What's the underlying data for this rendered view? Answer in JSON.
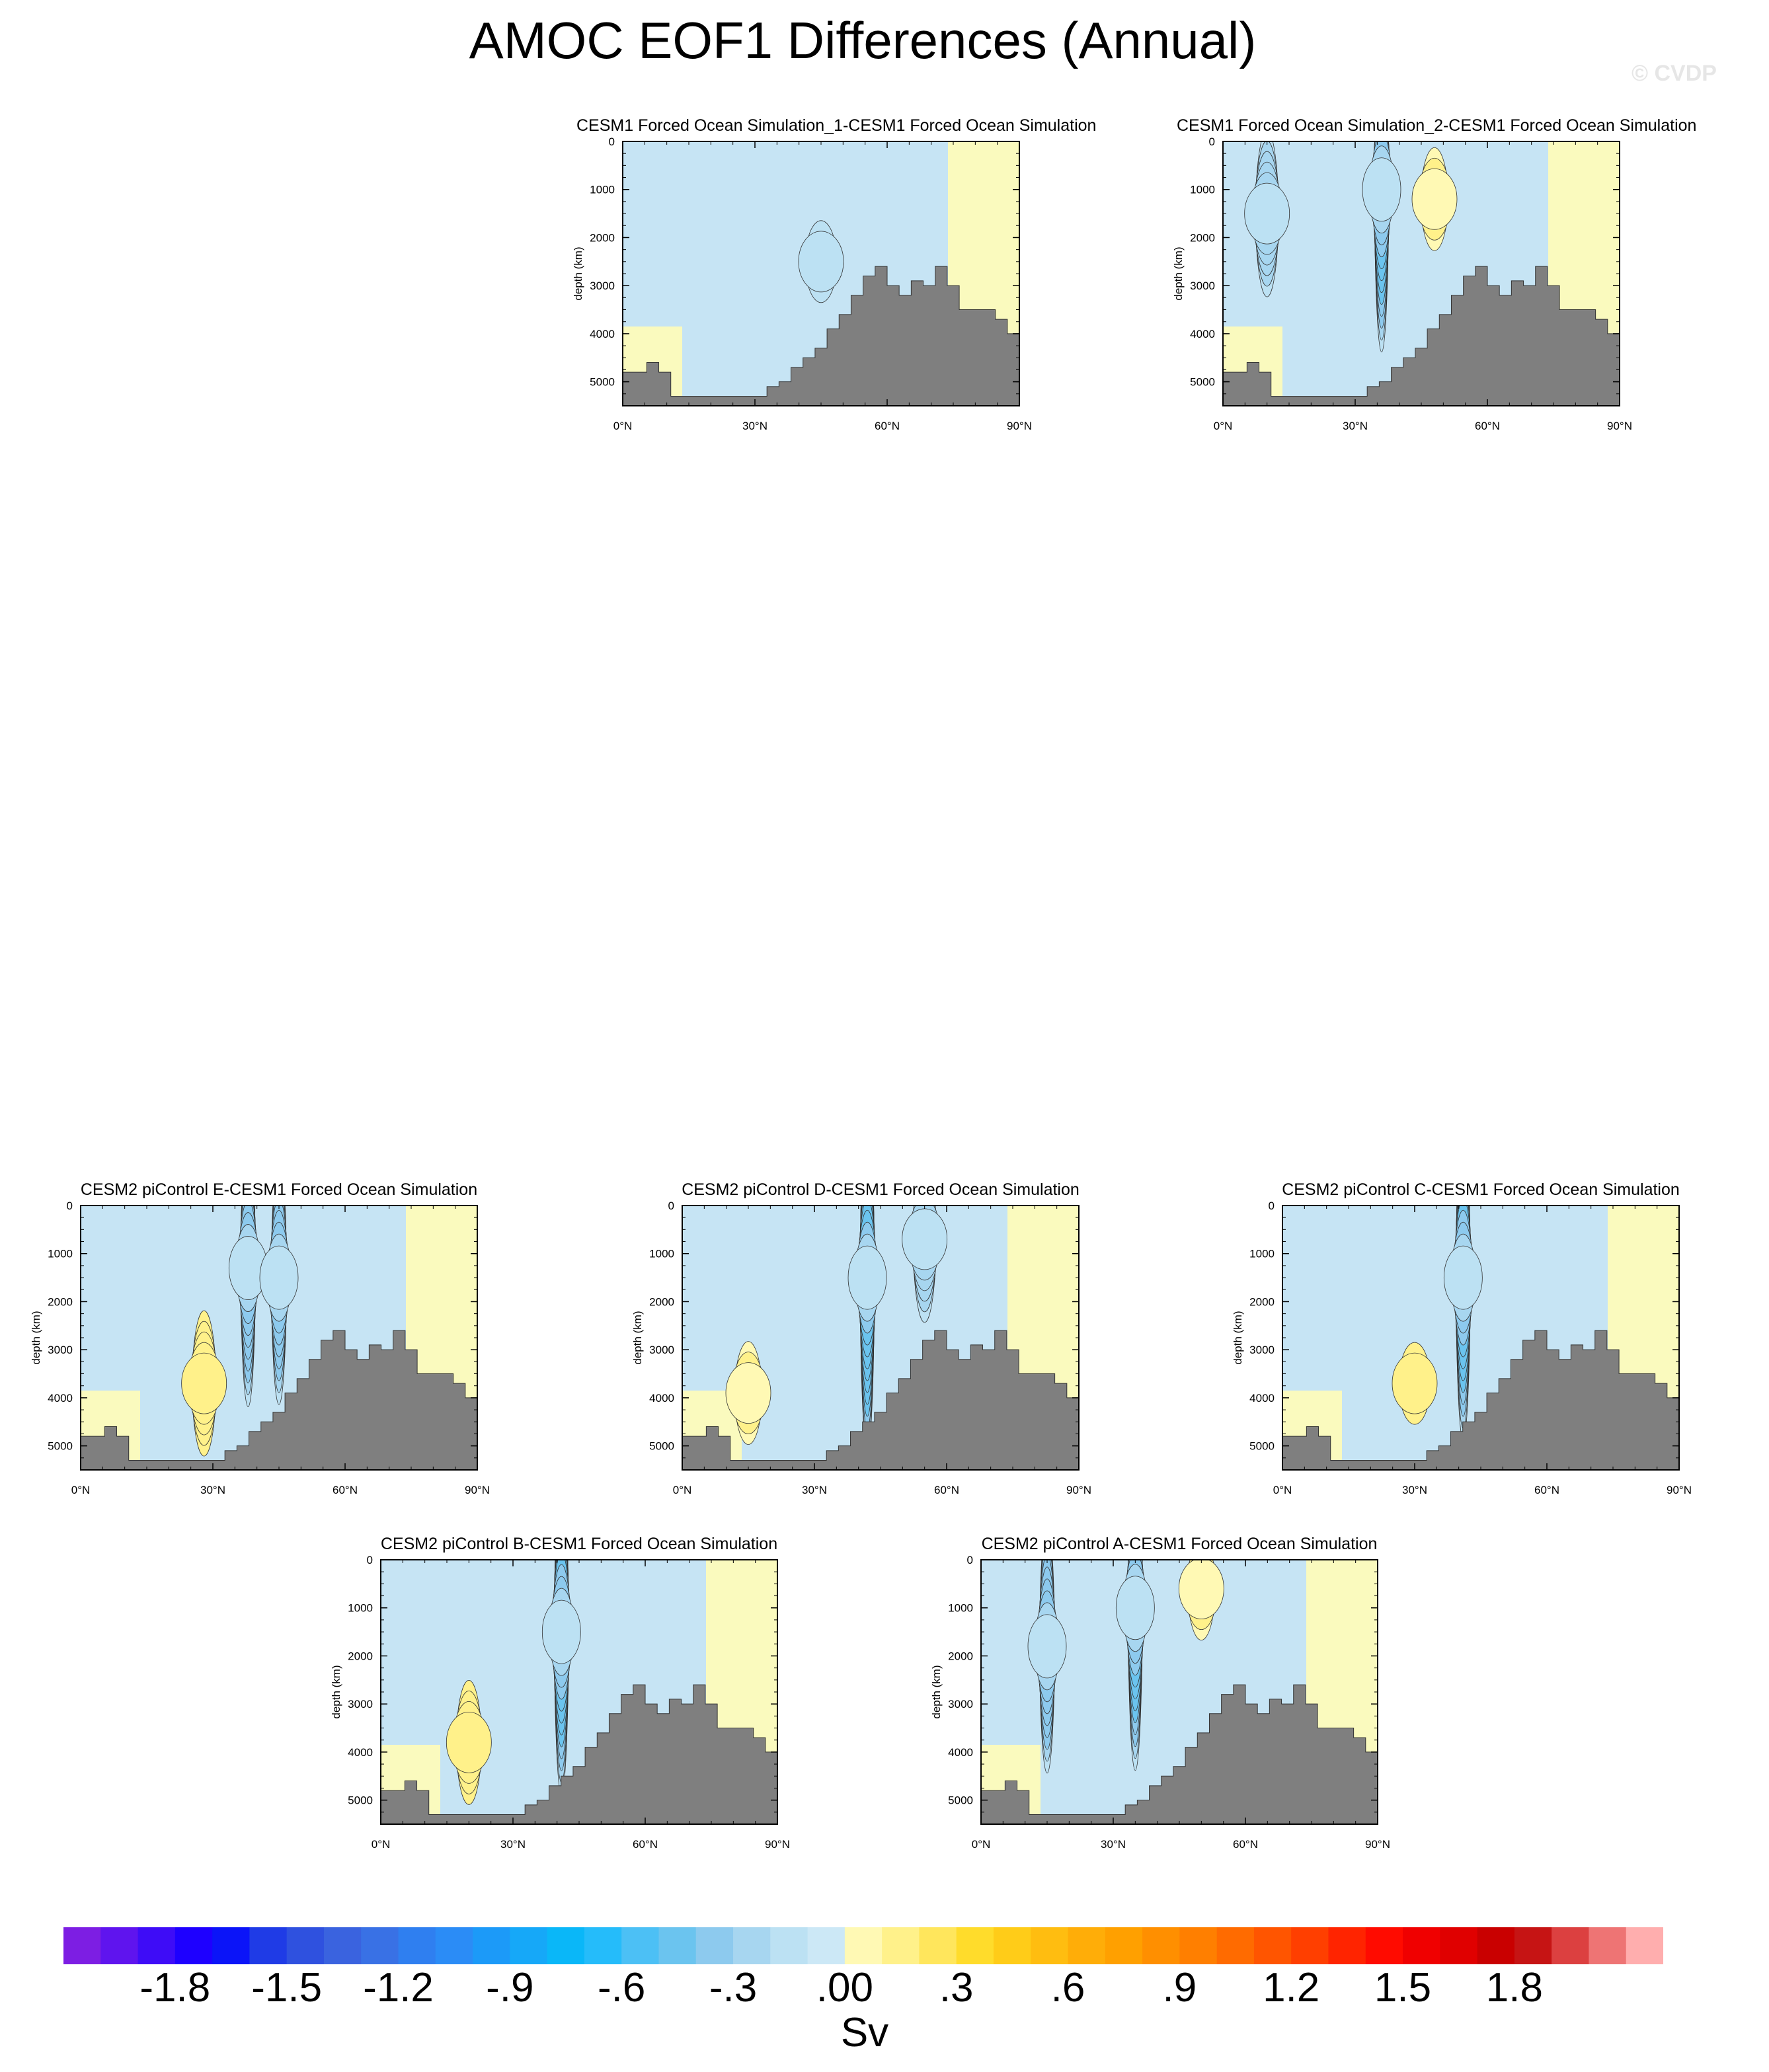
{
  "title": "AMOC EOF1 Differences (Annual)",
  "watermark": "© CVDP",
  "chart_data": [
    {
      "type": "heatmap",
      "title": "CESM1 Forced Ocean Simulation_1-CESM1 Forced Ocean Simulation",
      "ylabel": "depth (km)",
      "xticks": [
        "0°N",
        "30°N",
        "60°N",
        "90°N"
      ],
      "yticks": [
        "0",
        "1000",
        "2000",
        "3000",
        "4000",
        "5000"
      ],
      "xlim": [
        0,
        90
      ],
      "ylim": [
        0,
        5500
      ],
      "features": [
        {
          "lat": 45,
          "depth": 2500,
          "value": -0.1
        }
      ]
    },
    {
      "type": "heatmap",
      "title": "CESM1 Forced Ocean Simulation_2-CESM1 Forced Ocean Simulation",
      "ylabel": "depth (km)",
      "xticks": [
        "0°N",
        "30°N",
        "60°N",
        "90°N"
      ],
      "yticks": [
        "0",
        "1000",
        "2000",
        "3000",
        "4000",
        "5000"
      ],
      "xlim": [
        0,
        90
      ],
      "ylim": [
        0,
        5500
      ],
      "features": [
        {
          "lat": 10,
          "depth": 1500,
          "value": -0.6
        },
        {
          "lat": 36,
          "depth": 1000,
          "value": -1.2
        },
        {
          "lat": 48,
          "depth": 1200,
          "value": 0.3
        }
      ]
    },
    {
      "type": "heatmap",
      "title": "CESM2 piControl E-CESM1 Forced Ocean Simulation",
      "ylabel": "depth (km)",
      "xticks": [
        "0°N",
        "30°N",
        "60°N",
        "90°N"
      ],
      "yticks": [
        "0",
        "1000",
        "2000",
        "3000",
        "4000",
        "5000"
      ],
      "xlim": [
        0,
        90
      ],
      "ylim": [
        0,
        5500
      ],
      "features": [
        {
          "lat": 38,
          "depth": 1300,
          "value": -1.0
        },
        {
          "lat": 45,
          "depth": 1500,
          "value": -0.9
        },
        {
          "lat": 28,
          "depth": 3700,
          "value": 0.5
        }
      ]
    },
    {
      "type": "heatmap",
      "title": "CESM2 piControl D-CESM1 Forced Ocean Simulation",
      "ylabel": "depth (km)",
      "xticks": [
        "0°N",
        "30°N",
        "60°N",
        "90°N"
      ],
      "yticks": [
        "0",
        "1000",
        "2000",
        "3000",
        "4000",
        "5000"
      ],
      "xlim": [
        0,
        90
      ],
      "ylim": [
        0,
        5500
      ],
      "features": [
        {
          "lat": 42,
          "depth": 1500,
          "value": -1.3
        },
        {
          "lat": 55,
          "depth": 700,
          "value": -0.6
        },
        {
          "lat": 15,
          "depth": 3900,
          "value": 0.3
        }
      ]
    },
    {
      "type": "heatmap",
      "title": "CESM2 piControl C-CESM1 Forced Ocean Simulation",
      "ylabel": "depth (km)",
      "xticks": [
        "0°N",
        "30°N",
        "60°N",
        "90°N"
      ],
      "yticks": [
        "0",
        "1000",
        "2000",
        "3000",
        "4000",
        "5000"
      ],
      "xlim": [
        0,
        90
      ],
      "ylim": [
        0,
        5500
      ],
      "features": [
        {
          "lat": 41,
          "depth": 1500,
          "value": -1.2
        },
        {
          "lat": 30,
          "depth": 3700,
          "value": 0.2
        }
      ]
    },
    {
      "type": "heatmap",
      "title": "CESM2 piControl B-CESM1 Forced Ocean Simulation",
      "ylabel": "depth (km)",
      "xticks": [
        "0°N",
        "30°N",
        "60°N",
        "90°N"
      ],
      "yticks": [
        "0",
        "1000",
        "2000",
        "3000",
        "4000",
        "5000"
      ],
      "xlim": [
        0,
        90
      ],
      "ylim": [
        0,
        5500
      ],
      "features": [
        {
          "lat": 41,
          "depth": 1500,
          "value": -1.2
        },
        {
          "lat": 20,
          "depth": 3800,
          "value": 0.4
        }
      ]
    },
    {
      "type": "heatmap",
      "title": "CESM2 piControl A-CESM1 Forced Ocean Simulation",
      "ylabel": "depth (km)",
      "xticks": [
        "0°N",
        "30°N",
        "60°N",
        "90°N"
      ],
      "yticks": [
        "0",
        "1000",
        "2000",
        "3000",
        "4000",
        "5000"
      ],
      "xlim": [
        0,
        90
      ],
      "ylim": [
        0,
        5500
      ],
      "features": [
        {
          "lat": 15,
          "depth": 1800,
          "value": -0.9
        },
        {
          "lat": 35,
          "depth": 1000,
          "value": -1.2
        },
        {
          "lat": 50,
          "depth": 600,
          "value": 0.3
        }
      ]
    }
  ],
  "colorbar": {
    "colors": [
      "#7d1ee3",
      "#5f14ee",
      "#3e0cf7",
      "#1e00ff",
      "#0b14f8",
      "#1f3be6",
      "#2f51df",
      "#3a63df",
      "#3971e5",
      "#2f7ff0",
      "#2b8cf6",
      "#1c9af8",
      "#16a8f8",
      "#0ab7f8",
      "#25bcfa",
      "#4cc0f5",
      "#6bc4ef",
      "#8dcaee",
      "#a7d6f0",
      "#bce1f3",
      "#cce8f6",
      "#fff9b4",
      "#fff18a",
      "#ffe65c",
      "#ffdc2b",
      "#ffcc18",
      "#ffbd10",
      "#ffad08",
      "#ffa000",
      "#ff8f00",
      "#ff7f00",
      "#ff6b00",
      "#ff5500",
      "#ff3f00",
      "#ff2400",
      "#ff0b00",
      "#f00000",
      "#e00000",
      "#c90000",
      "#c61414",
      "#dc4040",
      "#ee7474",
      "#ffaeae"
    ],
    "labels": [
      "-1.8",
      "-1.5",
      "-1.2",
      "-.9",
      "-.6",
      "-.3",
      ".00",
      ".3",
      ".6",
      ".9",
      "1.2",
      "1.5",
      "1.8"
    ],
    "label_values": [
      -1.8,
      -1.5,
      -1.2,
      -0.9,
      -0.6,
      -0.3,
      0.0,
      0.3,
      0.6,
      0.9,
      1.2,
      1.5,
      1.8
    ],
    "units": "Sv"
  }
}
